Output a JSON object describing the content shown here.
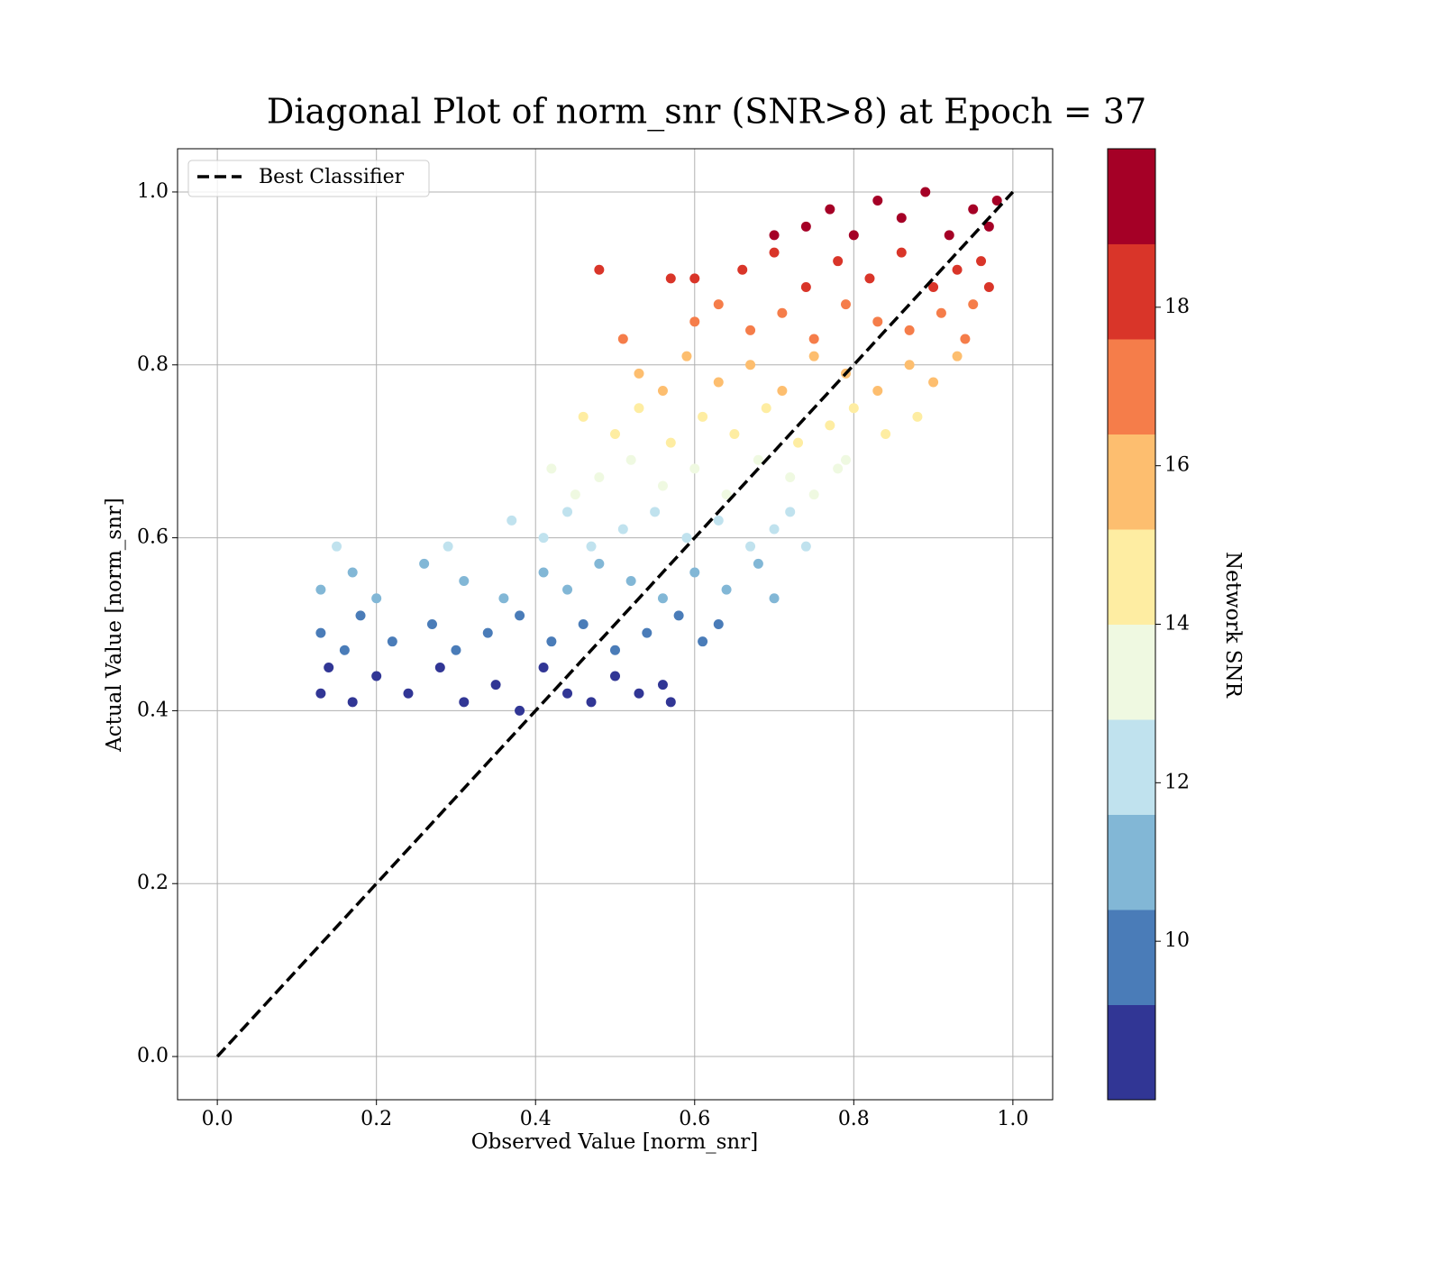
{
  "chart_data": {
    "type": "scatter",
    "title": "Diagonal Plot of norm_snr (SNR>8) at Epoch = 37",
    "xlabel": "Observed Value [norm_snr]",
    "ylabel": "Actual Value [norm_snr]",
    "xlim": [
      -0.05,
      1.05
    ],
    "ylim": [
      -0.05,
      1.05
    ],
    "xticks": [
      {
        "value": 0,
        "label": "0.0"
      },
      {
        "value": 0.2,
        "label": "0.2"
      },
      {
        "value": 0.4,
        "label": "0.4"
      },
      {
        "value": 0.6,
        "label": "0.6"
      },
      {
        "value": 0.8,
        "label": "0.8"
      },
      {
        "value": 1,
        "label": "1.0"
      }
    ],
    "yticks": [
      {
        "value": 0,
        "label": "0.0"
      },
      {
        "value": 0.2,
        "label": "0.2"
      },
      {
        "value": 0.4,
        "label": "0.4"
      },
      {
        "value": 0.6,
        "label": "0.6"
      },
      {
        "value": 0.8,
        "label": "0.8"
      },
      {
        "value": 1,
        "label": "1.0"
      }
    ],
    "grid": true,
    "legend": "upper left",
    "diagonal": {
      "name": "Best Classifier",
      "color": "#000000",
      "x": [
        0,
        1
      ],
      "y": [
        0,
        1
      ]
    },
    "colorbar": {
      "label": "Network SNR",
      "clim": [
        8,
        20
      ],
      "ticks": [
        10,
        12,
        14,
        16,
        18
      ],
      "colors": [
        "#313695",
        "#4a7cb8",
        "#82b7d6",
        "#c0e2ee",
        "#eff9e1",
        "#feeda2",
        "#fdbe6f",
        "#f57d4a",
        "#d93529",
        "#a50026"
      ]
    },
    "series": [
      {
        "x": [
          0.13,
          0.14,
          0.17,
          0.2,
          0.24,
          0.28,
          0.31,
          0.35,
          0.38,
          0.41,
          0.44,
          0.47,
          0.5,
          0.53,
          0.56,
          0.57,
          0.13,
          0.16,
          0.18,
          0.22,
          0.27,
          0.3,
          0.34,
          0.38,
          0.42,
          0.46,
          0.5,
          0.54,
          0.58,
          0.61,
          0.63,
          0.13,
          0.17,
          0.2,
          0.26,
          0.31,
          0.36,
          0.41,
          0.44,
          0.48,
          0.52,
          0.56,
          0.6,
          0.64,
          0.68,
          0.7,
          0.15,
          0.29,
          0.37,
          0.41,
          0.44,
          0.47,
          0.51,
          0.55,
          0.59,
          0.63,
          0.67,
          0.7,
          0.72,
          0.74,
          0.42,
          0.45,
          0.48,
          0.52,
          0.56,
          0.6,
          0.64,
          0.68,
          0.72,
          0.75,
          0.78,
          0.79,
          0.46,
          0.5,
          0.53,
          0.57,
          0.61,
          0.65,
          0.69,
          0.73,
          0.77,
          0.8,
          0.84,
          0.88,
          0.53,
          0.56,
          0.59,
          0.63,
          0.67,
          0.71,
          0.75,
          0.79,
          0.83,
          0.87,
          0.9,
          0.93,
          0.51,
          0.6,
          0.63,
          0.67,
          0.71,
          0.75,
          0.79,
          0.83,
          0.87,
          0.91,
          0.94,
          0.95,
          0.48,
          0.57,
          0.6,
          0.66,
          0.7,
          0.74,
          0.78,
          0.82,
          0.86,
          0.9,
          0.93,
          0.96,
          0.97,
          0.7,
          0.74,
          0.77,
          0.8,
          0.83,
          0.86,
          0.89,
          0.92,
          0.95,
          0.97,
          0.98
        ],
        "y": [
          0.42,
          0.45,
          0.41,
          0.44,
          0.42,
          0.45,
          0.41,
          0.43,
          0.4,
          0.45,
          0.42,
          0.41,
          0.44,
          0.42,
          0.43,
          0.41,
          0.49,
          0.47,
          0.51,
          0.48,
          0.5,
          0.47,
          0.49,
          0.51,
          0.48,
          0.5,
          0.47,
          0.49,
          0.51,
          0.48,
          0.5,
          0.54,
          0.56,
          0.53,
          0.57,
          0.55,
          0.53,
          0.56,
          0.54,
          0.57,
          0.55,
          0.53,
          0.56,
          0.54,
          0.57,
          0.53,
          0.59,
          0.59,
          0.62,
          0.6,
          0.63,
          0.59,
          0.61,
          0.63,
          0.6,
          0.62,
          0.59,
          0.61,
          0.63,
          0.59,
          0.68,
          0.65,
          0.67,
          0.69,
          0.66,
          0.68,
          0.65,
          0.69,
          0.67,
          0.65,
          0.68,
          0.69,
          0.74,
          0.72,
          0.75,
          0.71,
          0.74,
          0.72,
          0.75,
          0.71,
          0.73,
          0.75,
          0.72,
          0.74,
          0.79,
          0.77,
          0.81,
          0.78,
          0.8,
          0.77,
          0.81,
          0.79,
          0.77,
          0.8,
          0.78,
          0.81,
          0.83,
          0.85,
          0.87,
          0.84,
          0.86,
          0.83,
          0.87,
          0.85,
          0.84,
          0.86,
          0.83,
          0.87,
          0.91,
          0.9,
          0.9,
          0.91,
          0.93,
          0.89,
          0.92,
          0.9,
          0.93,
          0.89,
          0.91,
          0.92,
          0.89,
          0.95,
          0.96,
          0.98,
          0.95,
          0.99,
          0.97,
          1.0,
          0.95,
          0.98,
          0.96,
          0.99
        ],
        "c": [
          8.4,
          9,
          8.2,
          8.8,
          8.4,
          9,
          8.2,
          8.6,
          8,
          9,
          8.4,
          8.2,
          8.8,
          8.4,
          8.6,
          8.2,
          9.8,
          9.4,
          10.2,
          9.6,
          10,
          9.4,
          9.8,
          10.2,
          9.6,
          10,
          9.4,
          9.8,
          10.2,
          9.6,
          10,
          10.8,
          11.2,
          10.6,
          11.4,
          11,
          10.6,
          11.2,
          10.8,
          11.4,
          11,
          10.6,
          11.2,
          10.8,
          11.4,
          10.6,
          11.8,
          11.8,
          12.4,
          12,
          12.6,
          11.8,
          12.2,
          12.6,
          12,
          12.4,
          11.8,
          12.2,
          12.6,
          11.8,
          13.6,
          13,
          13.4,
          13.8,
          13.2,
          13.6,
          13,
          13.8,
          13.4,
          13,
          13.6,
          13.8,
          14.8,
          14.4,
          15,
          14.2,
          14.8,
          14.4,
          15,
          14.2,
          14.6,
          15,
          14.4,
          14.8,
          15.8,
          15.4,
          16.2,
          15.6,
          16,
          15.4,
          16.2,
          15.8,
          15.4,
          16,
          15.6,
          16.2,
          16.6,
          17,
          17.4,
          16.8,
          17.2,
          16.6,
          17.4,
          17,
          16.8,
          17.2,
          16.6,
          17.4,
          18.2,
          18,
          18,
          18.2,
          18.6,
          17.8,
          18.4,
          18,
          18.6,
          17.8,
          18.2,
          18.4,
          17.8,
          19,
          19.2,
          19.6,
          19,
          19.8,
          19.4,
          20,
          19,
          19.6,
          19.2,
          19.8
        ]
      }
    ]
  }
}
